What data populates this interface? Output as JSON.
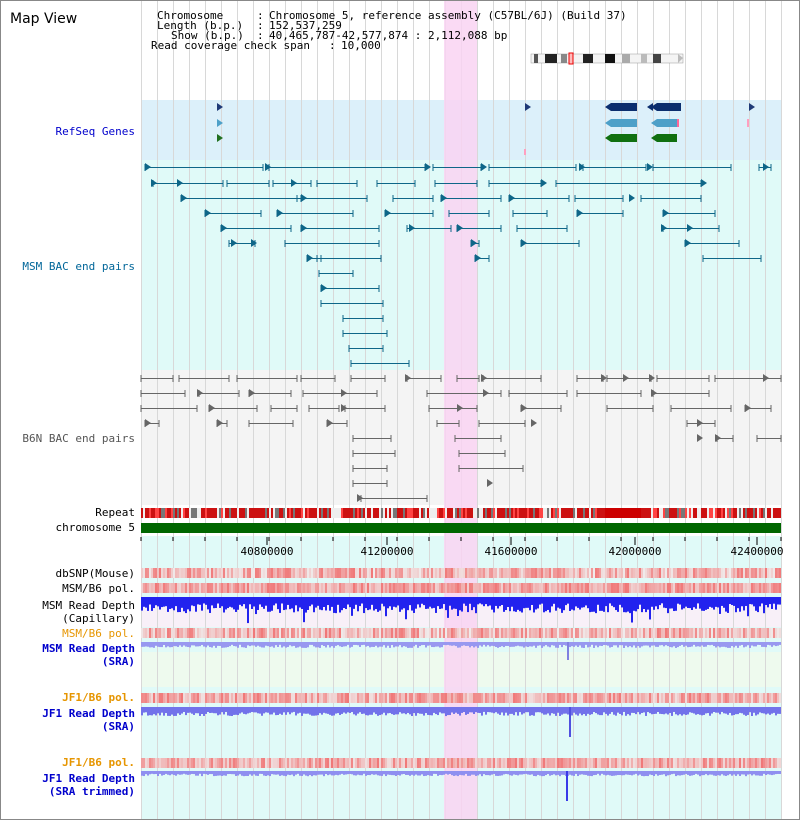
{
  "window": {
    "title": "Map View"
  },
  "info": {
    "chromosome_label": "Chromosome",
    "chromosome_value": "Chromosome 5, reference assembly (C57BL/6J) (Build 37)",
    "length_label": "Length (b.p.)",
    "length_value": "152,537,259",
    "show_label": "Show (b.p.)",
    "show_value": "40,465,787-42,577,874 : 2,112,088 bp",
    "coverage_label": "Read coverage check span",
    "coverage_value": "10,000"
  },
  "tracks": {
    "refseq": "RefSeq Genes",
    "msm_bac": "MSM BAC end pairs",
    "b6n_bac": "B6N BAC end pairs",
    "repeat": "Repeat",
    "chromosome": "chromosome 5",
    "dbsnp": "dbSNP(Mouse)",
    "msm_b6_pol_1": "MSM/B6 pol.",
    "msm_depth_cap_1": "MSM Read Depth",
    "msm_depth_cap_2": "(Capillary)",
    "msm_b6_pol_2": "MSM/B6 pol.",
    "msm_depth_sra_1": "MSM Read Depth",
    "msm_depth_sra_2": "(SRA)",
    "jf1_b6_pol_1": "JF1/B6 pol.",
    "jf1_depth_sra_1": "JF1 Read Depth",
    "jf1_depth_sra_2": "(SRA)",
    "jf1_b6_pol_2": "JF1/B6 pol.",
    "jf1_depth_trim_1": "JF1 Read Depth",
    "jf1_depth_trim_2": "(SRA trimmed)"
  },
  "axis": {
    "ticks": [
      "40800000",
      "41200000",
      "41600000",
      "42000000",
      "42400000"
    ]
  },
  "colors": {
    "refseq_label": "#0000cc",
    "msm_bac_label": "#006699",
    "orange_label": "#e69500",
    "blue_label": "#0000cc",
    "highlight": "#f9d4f2",
    "chromosome_bar": "#006600"
  }
}
